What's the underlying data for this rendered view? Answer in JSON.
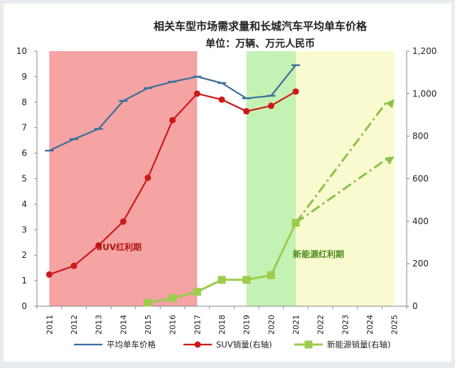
{
  "chart_data": {
    "type": "line",
    "title": "相关车型市场需求量和长城汽车平均单车价格",
    "subtitle": "单位：万辆、万元人民币",
    "x": [
      "2011",
      "2012",
      "2013",
      "2014",
      "2015",
      "2016",
      "2017",
      "2018",
      "2019",
      "2020",
      "2021",
      "2022",
      "2023",
      "2024",
      "2025"
    ],
    "y_left": {
      "range": [
        0,
        10
      ],
      "ticks": [
        "0",
        "1",
        "2",
        "3",
        "4",
        "5",
        "6",
        "7",
        "8",
        "9",
        "10"
      ]
    },
    "y_right": {
      "range": [
        0,
        1200
      ],
      "ticks": [
        "0",
        "200",
        "400",
        "600",
        "800",
        "1,000",
        "1,200"
      ]
    },
    "series": [
      {
        "name": "平均单车价格",
        "axis": "left",
        "color": "#3b6f9b",
        "values": [
          6.1,
          6.55,
          6.95,
          8.05,
          8.55,
          8.8,
          9.0,
          8.75,
          8.15,
          8.25,
          9.45,
          null,
          null,
          null,
          null
        ]
      },
      {
        "name": "SUV销量(右轴)",
        "axis": "right",
        "color": "#cc1a1a",
        "values": [
          149,
          190,
          286,
          398,
          604,
          875,
          1000,
          972,
          917,
          943,
          1010,
          null,
          null,
          null,
          null
        ]
      },
      {
        "name": "新能源销量(右轴)",
        "axis": "right",
        "color": "#9ccc4b",
        "values": [
          null,
          null,
          null,
          null,
          17,
          38,
          68,
          124,
          124,
          146,
          392,
          null,
          null,
          null,
          null
        ]
      }
    ],
    "projections": [
      {
        "series": "新能源销量(右轴)",
        "axis": "right",
        "color": "#8bc34a",
        "from": [
          "2021",
          392
        ],
        "to": [
          "2025",
          975
        ]
      },
      {
        "series": "新能源销量(右轴)",
        "axis": "right",
        "color": "#8bc34a",
        "from": [
          "2021",
          392
        ],
        "to": [
          "2025",
          705
        ]
      }
    ],
    "shaded_periods": [
      {
        "label": "SUV红利期",
        "from": "2011",
        "to": "2017",
        "color": "#f5a3a3"
      },
      {
        "label": "新能源红利期",
        "from": "2019",
        "to": "2021",
        "color": "#c4f1b4"
      },
      {
        "label": "",
        "from": "2021",
        "to": "2025",
        "color": "#fafad0"
      }
    ],
    "legend": {
      "position": "bottom"
    }
  }
}
